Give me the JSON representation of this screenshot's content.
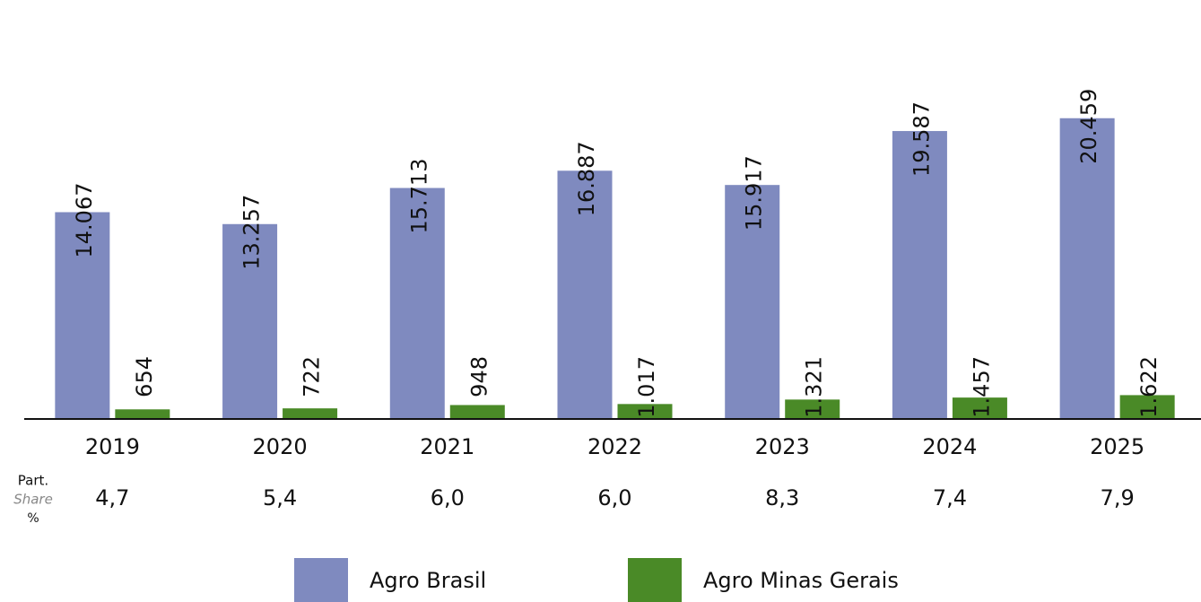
{
  "chart_data": {
    "type": "bar",
    "categories": [
      "2019",
      "2020",
      "2021",
      "2022",
      "2023",
      "2024",
      "2025"
    ],
    "series": [
      {
        "name": "Agro Brasil",
        "color": "#7f8abf",
        "values": [
          14067,
          13257,
          15713,
          16887,
          15917,
          19587,
          20459
        ],
        "value_labels": [
          "14.067",
          "13.257",
          "15.713",
          "16.887",
          "15.917",
          "19.587",
          "20.459"
        ]
      },
      {
        "name": "Agro Minas Gerais",
        "color": "#4a8a27",
        "values": [
          654,
          722,
          948,
          1017,
          1321,
          1457,
          1622
        ],
        "value_labels": [
          "654",
          "722",
          "948",
          "1.017",
          "1.321",
          "1.457",
          "1.622"
        ]
      }
    ],
    "ylim": [
      0,
      28500
    ],
    "share_row": {
      "title_lines": [
        "Part.",
        "Share",
        "%"
      ],
      "labels": [
        "4,7",
        "5,4",
        "6,0",
        "6,0",
        "8,3",
        "7,4",
        "7,9"
      ]
    }
  }
}
